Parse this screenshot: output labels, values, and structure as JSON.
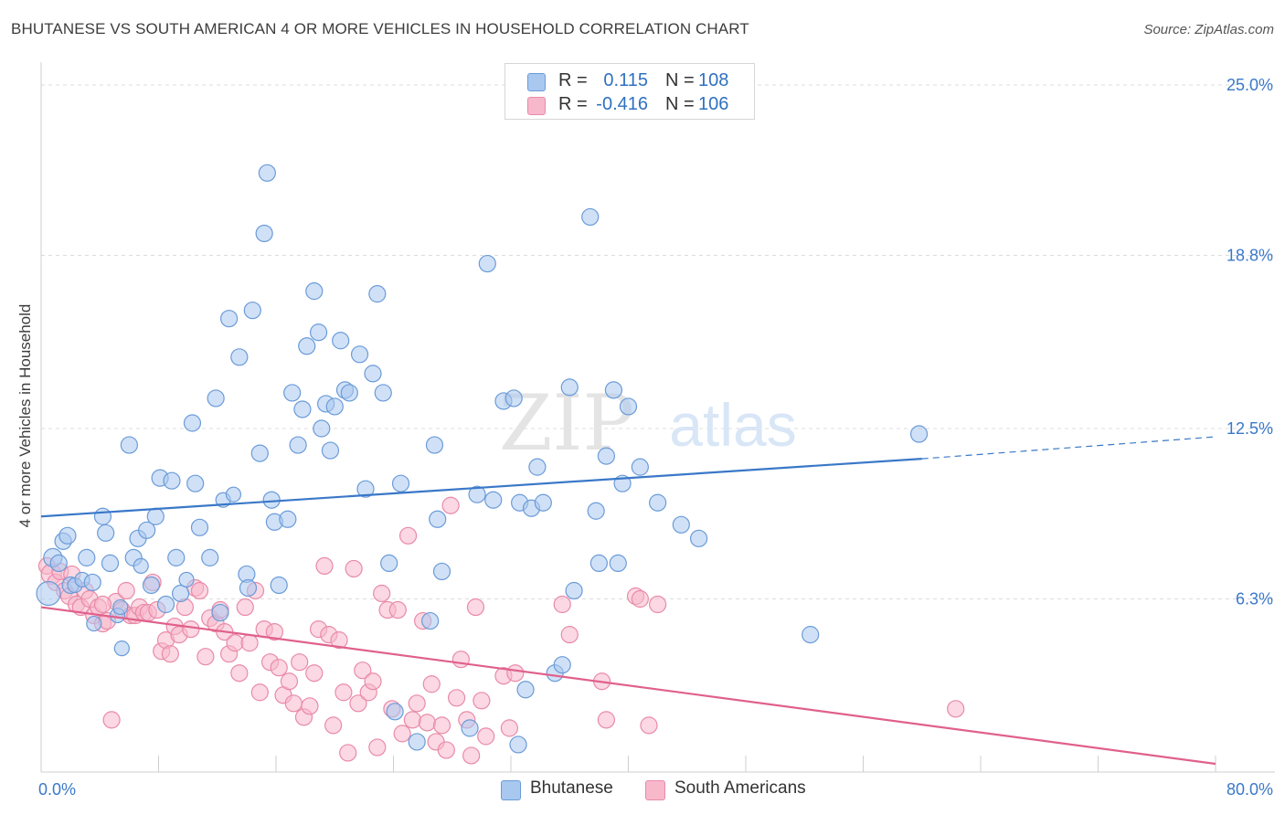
{
  "title": "BHUTANESE VS SOUTH AMERICAN 4 OR MORE VEHICLES IN HOUSEHOLD CORRELATION CHART",
  "source": "Source: ZipAtlas.com",
  "watermark": {
    "part1": "ZIP",
    "part2": "atlas"
  },
  "legend_top": {
    "rows": [
      {
        "r_label": "R =",
        "r_value": "0.115",
        "n_label": "N =",
        "n_value": "108",
        "color": "#a9c8f0",
        "stroke": "#6b9bd8"
      },
      {
        "r_label": "R =",
        "r_value": "-0.416",
        "n_label": "N =",
        "n_value": "106",
        "color": "#f7b8cc",
        "stroke": "#e98aa8"
      }
    ]
  },
  "legend_bottom": {
    "items": [
      {
        "label": "Bhutanese",
        "color": "#a9c8f0",
        "stroke": "#6b9bd8"
      },
      {
        "label": "South Americans",
        "color": "#f7b8cc",
        "stroke": "#e98aa8"
      }
    ]
  },
  "chart_data": {
    "type": "scatter",
    "title": "BHUTANESE VS SOUTH AMERICAN 4 OR MORE VEHICLES IN HOUSEHOLD CORRELATION CHART",
    "xlabel": "",
    "ylabel": "4 or more Vehicles in Household",
    "xlim": [
      0,
      80
    ],
    "ylim": [
      0,
      25.5
    ],
    "x_tick_labels": [
      {
        "value": 0,
        "label": "0.0%"
      },
      {
        "value": 80,
        "label": "80.0%"
      }
    ],
    "y_tick_labels": [
      {
        "value": 6.3,
        "label": "6.3%"
      },
      {
        "value": 12.5,
        "label": "12.5%"
      },
      {
        "value": 18.8,
        "label": "18.8%"
      },
      {
        "value": 25.0,
        "label": "25.0%"
      }
    ],
    "grid": true,
    "legend_position": "top-center",
    "colors": {
      "Bhutanese": "#3a78c8",
      "South Americans": "#e0608c"
    },
    "series": [
      {
        "name": "Bhutanese",
        "fill": "#a9c8f0",
        "stroke": "#6b9bd8",
        "trend": {
          "x0": 0,
          "y0": 9.3,
          "x1": 60,
          "y1": 11.4,
          "dash_x1": 80,
          "dash_y1": 12.2
        },
        "points": [
          [
            0.5,
            6.5,
            13
          ],
          [
            0.8,
            7.8,
            10
          ],
          [
            1.2,
            7.6,
            9
          ],
          [
            1.5,
            8.4,
            9
          ],
          [
            1.8,
            8.6,
            9
          ],
          [
            2.0,
            6.8,
            9
          ],
          [
            2.3,
            6.8,
            8
          ],
          [
            2.8,
            7.0,
            8
          ],
          [
            3.1,
            7.8,
            9
          ],
          [
            3.5,
            6.9,
            9
          ],
          [
            3.6,
            5.4,
            8
          ],
          [
            4.2,
            9.3,
            9
          ],
          [
            4.4,
            8.7,
            9
          ],
          [
            4.7,
            7.6,
            9
          ],
          [
            5.2,
            5.7,
            8
          ],
          [
            5.4,
            6.0,
            8
          ],
          [
            5.5,
            4.5,
            8
          ],
          [
            6.0,
            11.9,
            9
          ],
          [
            6.3,
            7.8,
            9
          ],
          [
            6.6,
            8.5,
            9
          ],
          [
            6.8,
            7.5,
            8
          ],
          [
            7.2,
            8.8,
            9
          ],
          [
            7.5,
            6.8,
            9
          ],
          [
            7.8,
            9.3,
            9
          ],
          [
            8.1,
            10.7,
            9
          ],
          [
            8.5,
            6.1,
            9
          ],
          [
            8.9,
            10.6,
            9
          ],
          [
            9.2,
            7.8,
            9
          ],
          [
            9.5,
            6.5,
            9
          ],
          [
            9.9,
            7.0,
            8
          ],
          [
            10.3,
            12.7,
            9
          ],
          [
            10.5,
            10.5,
            9
          ],
          [
            10.8,
            8.9,
            9
          ],
          [
            11.5,
            7.8,
            9
          ],
          [
            11.9,
            13.6,
            9
          ],
          [
            12.2,
            5.8,
            9
          ],
          [
            12.4,
            9.9,
            8
          ],
          [
            12.8,
            16.5,
            9
          ],
          [
            13.1,
            10.1,
            8
          ],
          [
            13.5,
            15.1,
            9
          ],
          [
            14.0,
            7.2,
            9
          ],
          [
            14.1,
            6.7,
            9
          ],
          [
            14.4,
            16.8,
            9
          ],
          [
            14.9,
            11.6,
            9
          ],
          [
            15.2,
            19.6,
            9
          ],
          [
            15.4,
            21.8,
            9
          ],
          [
            15.7,
            9.9,
            9
          ],
          [
            15.9,
            9.1,
            9
          ],
          [
            16.2,
            6.8,
            9
          ],
          [
            16.8,
            9.2,
            9
          ],
          [
            17.1,
            13.8,
            9
          ],
          [
            17.5,
            11.9,
            9
          ],
          [
            17.8,
            13.2,
            9
          ],
          [
            18.1,
            15.5,
            9
          ],
          [
            18.6,
            17.5,
            9
          ],
          [
            18.9,
            16.0,
            9
          ],
          [
            19.1,
            12.5,
            9
          ],
          [
            19.4,
            13.4,
            9
          ],
          [
            19.7,
            11.7,
            9
          ],
          [
            20.0,
            13.3,
            9
          ],
          [
            20.4,
            15.7,
            9
          ],
          [
            20.7,
            13.9,
            9
          ],
          [
            21.0,
            13.8,
            9
          ],
          [
            21.7,
            15.2,
            9
          ],
          [
            22.1,
            10.3,
            9
          ],
          [
            22.6,
            14.5,
            9
          ],
          [
            22.9,
            17.4,
            9
          ],
          [
            23.3,
            13.8,
            9
          ],
          [
            23.7,
            7.6,
            9
          ],
          [
            24.1,
            2.2,
            9
          ],
          [
            24.5,
            10.5,
            9
          ],
          [
            25.6,
            1.1,
            9
          ],
          [
            26.5,
            5.5,
            9
          ],
          [
            26.8,
            11.9,
            9
          ],
          [
            27.0,
            9.2,
            9
          ],
          [
            27.3,
            7.3,
            9
          ],
          [
            29.2,
            1.6,
            9
          ],
          [
            29.7,
            10.1,
            9
          ],
          [
            30.4,
            18.5,
            9
          ],
          [
            30.8,
            9.9,
            9
          ],
          [
            31.5,
            13.5,
            9
          ],
          [
            32.2,
            13.6,
            9
          ],
          [
            32.6,
            9.8,
            9
          ],
          [
            33.0,
            3.0,
            9
          ],
          [
            33.4,
            9.6,
            9
          ],
          [
            33.8,
            11.1,
            9
          ],
          [
            34.2,
            9.8,
            9
          ],
          [
            35.0,
            3.6,
            9
          ],
          [
            35.5,
            3.9,
            9
          ],
          [
            36.0,
            14.0,
            9
          ],
          [
            36.3,
            6.6,
            9
          ],
          [
            37.4,
            20.2,
            9
          ],
          [
            37.8,
            9.5,
            9
          ],
          [
            38.0,
            7.6,
            9
          ],
          [
            38.5,
            11.5,
            9
          ],
          [
            39.0,
            13.9,
            9
          ],
          [
            39.3,
            7.6,
            9
          ],
          [
            39.6,
            10.5,
            9
          ],
          [
            40.0,
            13.3,
            9
          ],
          [
            40.8,
            11.1,
            9
          ],
          [
            42.0,
            9.8,
            9
          ],
          [
            43.6,
            9.0,
            9
          ],
          [
            44.8,
            8.5,
            9
          ],
          [
            52.4,
            5.0,
            9
          ],
          [
            59.8,
            12.3,
            9
          ],
          [
            32.5,
            1.0,
            9
          ]
        ]
      },
      {
        "name": "South Americans",
        "fill": "#f7b8cc",
        "stroke": "#e98aa8",
        "trend": {
          "x0": 0,
          "y0": 6.0,
          "x1": 80,
          "y1": 0.3
        },
        "points": [
          [
            0.4,
            7.5,
            9
          ],
          [
            0.7,
            7.2,
            11
          ],
          [
            1.0,
            6.9,
            9
          ],
          [
            1.3,
            7.3,
            9
          ],
          [
            1.6,
            6.6,
            9
          ],
          [
            1.9,
            6.4,
            9
          ],
          [
            2.1,
            7.2,
            9
          ],
          [
            2.4,
            6.1,
            9
          ],
          [
            2.7,
            6.0,
            9
          ],
          [
            3.0,
            6.6,
            9
          ],
          [
            3.3,
            6.3,
            9
          ],
          [
            3.6,
            5.7,
            9
          ],
          [
            3.9,
            6.0,
            9
          ],
          [
            4.2,
            5.4,
            9
          ],
          [
            4.5,
            5.5,
            9
          ],
          [
            4.8,
            1.9,
            9
          ],
          [
            5.1,
            6.2,
            9
          ],
          [
            5.5,
            5.9,
            9
          ],
          [
            5.8,
            6.6,
            9
          ],
          [
            6.1,
            5.7,
            9
          ],
          [
            6.4,
            5.7,
            9
          ],
          [
            6.7,
            6.0,
            9
          ],
          [
            7.0,
            5.8,
            9
          ],
          [
            7.3,
            5.8,
            9
          ],
          [
            7.6,
            6.9,
            9
          ],
          [
            7.9,
            5.9,
            9
          ],
          [
            8.2,
            4.4,
            9
          ],
          [
            8.5,
            4.8,
            9
          ],
          [
            8.8,
            4.3,
            9
          ],
          [
            9.1,
            5.3,
            9
          ],
          [
            9.4,
            5.0,
            9
          ],
          [
            9.8,
            6.0,
            9
          ],
          [
            10.2,
            5.2,
            9
          ],
          [
            10.5,
            6.7,
            9
          ],
          [
            10.8,
            6.6,
            9
          ],
          [
            11.2,
            4.2,
            9
          ],
          [
            11.5,
            5.6,
            9
          ],
          [
            11.9,
            5.4,
            9
          ],
          [
            12.2,
            5.9,
            9
          ],
          [
            12.5,
            5.1,
            9
          ],
          [
            12.8,
            4.3,
            9
          ],
          [
            13.2,
            4.7,
            9
          ],
          [
            13.5,
            3.6,
            9
          ],
          [
            13.9,
            6.0,
            9
          ],
          [
            14.2,
            4.7,
            9
          ],
          [
            14.6,
            6.6,
            9
          ],
          [
            14.9,
            2.9,
            9
          ],
          [
            15.2,
            5.2,
            9
          ],
          [
            15.6,
            4.0,
            9
          ],
          [
            15.9,
            5.1,
            9
          ],
          [
            16.2,
            3.8,
            9
          ],
          [
            16.5,
            2.8,
            9
          ],
          [
            16.9,
            3.3,
            9
          ],
          [
            17.2,
            2.5,
            9
          ],
          [
            17.6,
            4.0,
            9
          ],
          [
            17.9,
            2.0,
            9
          ],
          [
            18.3,
            2.4,
            9
          ],
          [
            18.6,
            3.6,
            9
          ],
          [
            18.9,
            5.2,
            9
          ],
          [
            19.3,
            7.5,
            9
          ],
          [
            19.6,
            5.0,
            9
          ],
          [
            19.9,
            1.7,
            9
          ],
          [
            20.3,
            4.8,
            9
          ],
          [
            20.6,
            2.9,
            9
          ],
          [
            20.9,
            0.7,
            9
          ],
          [
            21.3,
            7.4,
            9
          ],
          [
            21.6,
            2.5,
            9
          ],
          [
            21.9,
            3.7,
            9
          ],
          [
            22.3,
            2.9,
            9
          ],
          [
            22.6,
            3.3,
            9
          ],
          [
            22.9,
            0.9,
            9
          ],
          [
            23.2,
            6.5,
            9
          ],
          [
            23.6,
            5.9,
            9
          ],
          [
            23.9,
            2.3,
            9
          ],
          [
            24.3,
            5.9,
            9
          ],
          [
            24.6,
            1.4,
            9
          ],
          [
            25.0,
            8.6,
            9
          ],
          [
            25.3,
            1.9,
            9
          ],
          [
            25.6,
            2.5,
            9
          ],
          [
            26.0,
            5.5,
            9
          ],
          [
            26.3,
            1.8,
            9
          ],
          [
            26.6,
            3.2,
            9
          ],
          [
            26.9,
            1.1,
            9
          ],
          [
            27.3,
            1.7,
            9
          ],
          [
            27.6,
            0.8,
            9
          ],
          [
            27.9,
            9.7,
            9
          ],
          [
            28.3,
            2.7,
            9
          ],
          [
            28.6,
            4.1,
            9
          ],
          [
            29.0,
            1.9,
            9
          ],
          [
            29.3,
            0.6,
            9
          ],
          [
            29.6,
            6.0,
            9
          ],
          [
            30.0,
            2.6,
            9
          ],
          [
            30.3,
            1.3,
            9
          ],
          [
            31.5,
            3.5,
            9
          ],
          [
            31.9,
            1.6,
            9
          ],
          [
            32.3,
            3.6,
            9
          ],
          [
            35.5,
            6.1,
            9
          ],
          [
            36.0,
            5.0,
            9
          ],
          [
            38.2,
            3.3,
            9
          ],
          [
            38.5,
            1.9,
            9
          ],
          [
            40.5,
            6.4,
            9
          ],
          [
            40.8,
            6.3,
            9
          ],
          [
            41.4,
            1.7,
            9
          ],
          [
            42.0,
            6.1,
            9
          ],
          [
            62.3,
            2.3,
            9
          ],
          [
            4.2,
            6.1,
            9
          ]
        ]
      }
    ]
  }
}
